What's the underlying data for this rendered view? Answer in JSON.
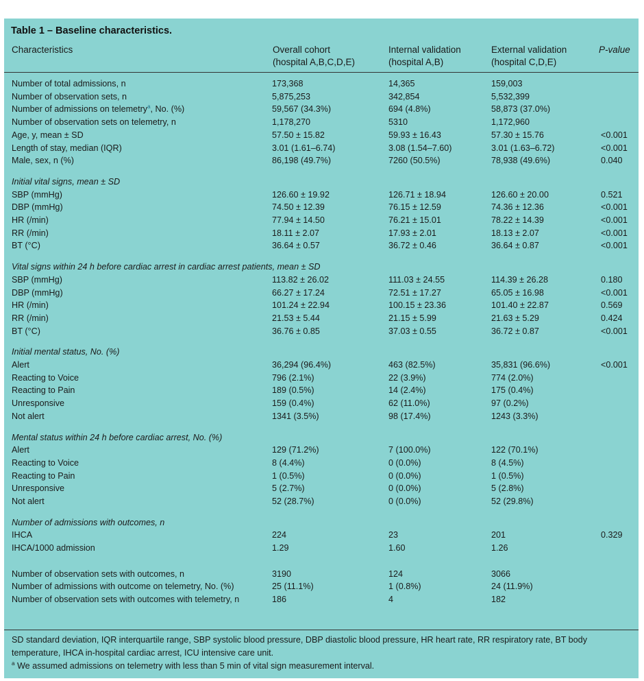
{
  "title": "Table 1 – Baseline characteristics.",
  "headers": {
    "characteristics": "Characteristics",
    "overall_line1": "Overall cohort",
    "overall_line2": "(hospital A,B,C,D,E)",
    "internal_line1": "Internal validation",
    "internal_line2": "(hospital A,B)",
    "external_line1": "External validation",
    "external_line2": "(hospital C,D,E)",
    "pvalue": "P-value"
  },
  "rows": [
    {
      "label": "Number of total admissions, n",
      "overall": "173,368",
      "internal": "14,365",
      "external": "159,003",
      "p": ""
    },
    {
      "label": "Number of observation sets, n",
      "overall": "5,875,253",
      "internal": "342,854",
      "external": "5,532,399",
      "p": ""
    },
    {
      "label_main": "Number of admissions on telemetry",
      "label_sup": "a",
      "label_rest": ", No. (%)",
      "overall": "59,567 (34.3%)",
      "internal": "694 (4.8%)",
      "external": "58,873 (37.0%)",
      "p": ""
    },
    {
      "label": "Number of observation sets on telemetry, n",
      "overall": "1,178,270",
      "internal": "5310",
      "external": "1,172,960",
      "p": ""
    },
    {
      "label": "Age, y, mean ± SD",
      "overall": "57.50 ± 15.82",
      "internal": "59.93 ± 16.43",
      "external": "57.30 ± 15.76",
      "p": "<0.001"
    },
    {
      "label": "Length of stay, median (IQR)",
      "overall": "3.01 (1.61–6.74)",
      "internal": "3.08 (1.54–7.60)",
      "external": "3.01 (1.63–6.72)",
      "p": "<0.001"
    },
    {
      "label": "Male, sex, n (%)",
      "overall": "86,198 (49.7%)",
      "internal": "7260 (50.5%)",
      "external": "78,938 (49.6%)",
      "p": "0.040"
    },
    {
      "section": "Initial vital signs, mean ± SD"
    },
    {
      "label": "SBP (mmHg)",
      "overall": "126.60 ± 19.92",
      "internal": "126.71 ± 18.94",
      "external": "126.60 ± 20.00",
      "p": "0.521"
    },
    {
      "label": "DBP (mmHg)",
      "overall": "74.50 ± 12.39",
      "internal": "76.15 ± 12.59",
      "external": "74.36 ± 12.36",
      "p": "<0.001"
    },
    {
      "label": "HR (/min)",
      "overall": "77.94 ± 14.50",
      "internal": "76.21 ± 15.01",
      "external": "78.22 ± 14.39",
      "p": "<0.001"
    },
    {
      "label": "RR (/min)",
      "overall": "18.11 ± 2.07",
      "internal": "17.93 ± 2.01",
      "external": "18.13 ± 2.07",
      "p": "<0.001"
    },
    {
      "label": "BT (°C)",
      "overall": "36.64 ± 0.57",
      "internal": "36.72 ± 0.46",
      "external": "36.64 ± 0.87",
      "p": "<0.001"
    },
    {
      "section": "Vital signs within 24 h before cardiac arrest in cardiac arrest patients, mean ± SD"
    },
    {
      "label": "SBP (mmHg)",
      "overall": "113.82 ± 26.02",
      "internal": "111.03 ± 24.55",
      "external": "114.39 ± 26.28",
      "p": "0.180"
    },
    {
      "label": "DBP (mmHg)",
      "overall": "66.27 ± 17.24",
      "internal": "72.51 ± 17.27",
      "external": "65.05 ± 16.98",
      "p": "<0.001"
    },
    {
      "label": "HR (/min)",
      "overall": "101.24 ± 22.94",
      "internal": "100.15 ± 23.36",
      "external": "101.40 ± 22.87",
      "p": "0.569"
    },
    {
      "label": "RR (/min)",
      "overall": "21.53 ± 5.44",
      "internal": "21.15 ± 5.99",
      "external": "21.63 ± 5.29",
      "p": "0.424"
    },
    {
      "label": "BT (°C)",
      "overall": "36.76 ± 0.85",
      "internal": "37.03 ± 0.55",
      "external": "36.72 ± 0.87",
      "p": "<0.001"
    },
    {
      "section": "Initial mental status, No. (%)"
    },
    {
      "label": "Alert",
      "overall": "36,294 (96.4%)",
      "internal": "463 (82.5%)",
      "external": "35,831 (96.6%)",
      "p": "<0.001"
    },
    {
      "label": "Reacting to Voice",
      "overall": "796 (2.1%)",
      "internal": "22 (3.9%)",
      "external": "774 (2.0%)",
      "p": ""
    },
    {
      "label": "Reacting to Pain",
      "overall": "189 (0.5%)",
      "internal": "14 (2.4%)",
      "external": "175 (0.4%)",
      "p": ""
    },
    {
      "label": "Unresponsive",
      "overall": "159 (0.4%)",
      "internal": "62 (11.0%)",
      "external": "97 (0.2%)",
      "p": ""
    },
    {
      "label": "Not alert",
      "overall": "1341 (3.5%)",
      "internal": "98 (17.4%)",
      "external": "1243 (3.3%)",
      "p": ""
    },
    {
      "section": "Mental status within 24 h before cardiac arrest, No. (%)"
    },
    {
      "label": "Alert",
      "overall": "129 (71.2%)",
      "internal": "7 (100.0%)",
      "external": "122 (70.1%)",
      "p": ""
    },
    {
      "label": "Reacting to Voice",
      "overall": "8 (4.4%)",
      "internal": "0 (0.0%)",
      "external": "8 (4.5%)",
      "p": ""
    },
    {
      "label": "Reacting to Pain",
      "overall": "1 (0.5%)",
      "internal": "0 (0.0%)",
      "external": "1 (0.5%)",
      "p": ""
    },
    {
      "label": "Unresponsive",
      "overall": "5 (2.7%)",
      "internal": "0 (0.0%)",
      "external": "5 (2.8%)",
      "p": ""
    },
    {
      "label": "Not alert",
      "overall": "52 (28.7%)",
      "internal": "0 (0.0%)",
      "external": "52 (29.8%)",
      "p": ""
    },
    {
      "section": "Number of admissions with outcomes, n"
    },
    {
      "label": "IHCA",
      "overall": "224",
      "internal": "23",
      "external": "201",
      "p": "0.329"
    },
    {
      "label": "IHCA/1000 admission",
      "overall": "1.29",
      "internal": "1.60",
      "external": "1.26",
      "p": ""
    },
    {
      "spacer": true
    },
    {
      "label": "Number of observation sets with outcomes, n",
      "overall": "3190",
      "internal": "124",
      "external": "3066",
      "p": ""
    },
    {
      "label": "Number of admissions with outcome on telemetry, No. (%)",
      "overall": "25 (11.1%)",
      "internal": "1 (0.8%)",
      "external": "24 (11.9%)",
      "p": ""
    },
    {
      "label": "Number of observation sets with outcomes with telemetry, n",
      "overall": "186",
      "internal": "4",
      "external": "182",
      "p": ""
    }
  ],
  "footnotes": {
    "abbrev": "SD standard deviation, IQR interquartile range, SBP systolic blood pressure, DBP diastolic blood pressure, HR heart rate, RR respiratory rate, BT body temperature, IHCA in-hospital cardiac arrest, ICU intensive care unit.",
    "note_marker": "a",
    "note": " We assumed admissions on telemetry with less than 5 min of vital sign measurement interval."
  }
}
